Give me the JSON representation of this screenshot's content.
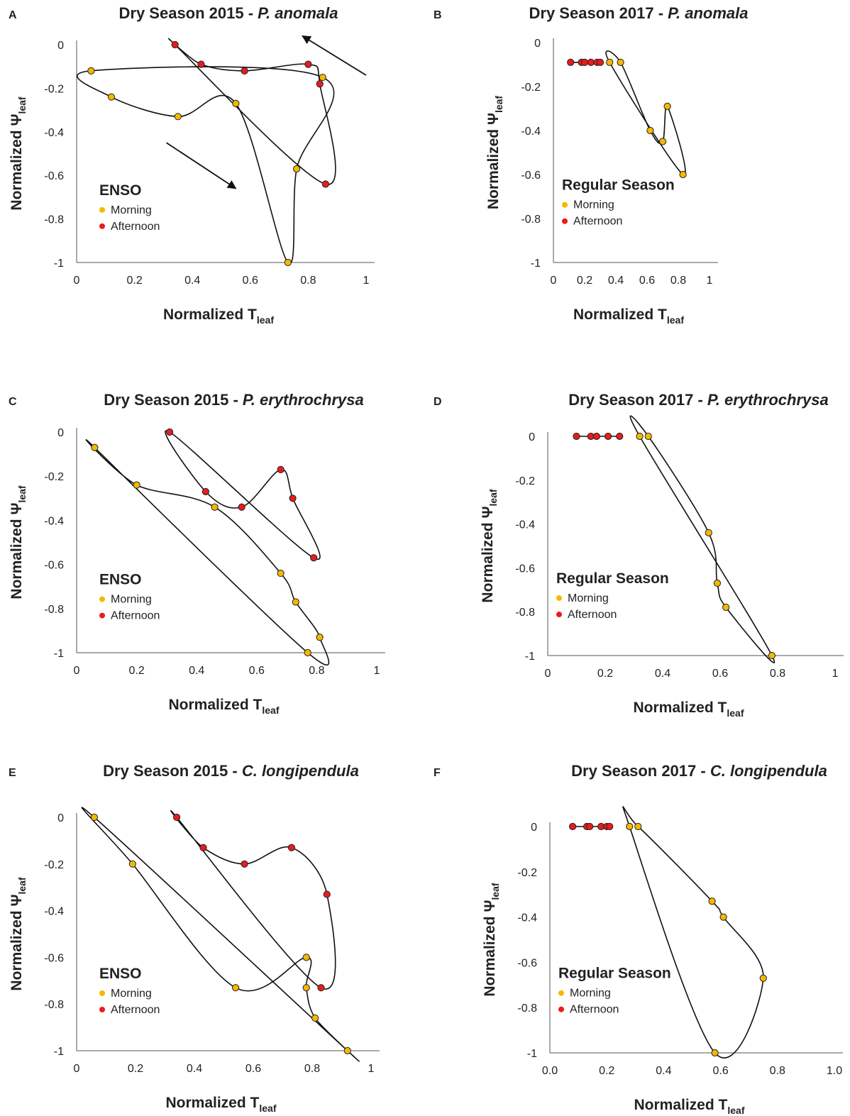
{
  "colors": {
    "morning": "#f5b800",
    "afternoon": "#e81c1c",
    "line": "#111111",
    "text": "#222222"
  },
  "x_label": {
    "main": "Normalized T",
    "sub": "leaf"
  },
  "y_label": {
    "main": "Normalized Ψ",
    "sub": "leaf"
  },
  "legend": {
    "morning": "Morning",
    "afternoon": "Afternoon"
  },
  "chart_data": [
    {
      "id": "A",
      "type": "scatter",
      "title": {
        "main": "Dry Season 2015 - ",
        "species": "P. anomala"
      },
      "annotation": "ENSO",
      "xlim": [
        0,
        1
      ],
      "ylim": [
        -1,
        0
      ],
      "x_ticks": [
        "0",
        "0.2",
        "0.4",
        "0.6",
        "0.8",
        "1"
      ],
      "y_ticks": [
        "0",
        "-0.2",
        "-0.4",
        "-0.6",
        "-0.8",
        "-1"
      ],
      "arrows": [
        {
          "from": [
            0.31,
            -0.45
          ],
          "to": [
            0.55,
            -0.66
          ]
        },
        {
          "from": [
            1.0,
            -0.14
          ],
          "to": [
            0.78,
            0.04
          ]
        }
      ],
      "series": [
        {
          "group": "morning",
          "points": [
            [
              0.05,
              -0.12
            ],
            [
              0.12,
              -0.24
            ],
            [
              0.35,
              -0.33
            ],
            [
              0.55,
              -0.27
            ],
            [
              0.73,
              -1.0
            ],
            [
              0.76,
              -0.57
            ],
            [
              0.85,
              -0.15
            ]
          ]
        },
        {
          "group": "afternoon",
          "points": [
            [
              0.34,
              0.0
            ],
            [
              0.43,
              -0.09
            ],
            [
              0.58,
              -0.12
            ],
            [
              0.8,
              -0.09
            ],
            [
              0.84,
              -0.18
            ],
            [
              0.86,
              -0.64
            ]
          ]
        }
      ]
    },
    {
      "id": "B",
      "type": "scatter",
      "title": {
        "main": "Dry Season 2017 - ",
        "species": "P. anomala"
      },
      "annotation": "Regular Season",
      "xlim": [
        0,
        1
      ],
      "ylim": [
        -1,
        0
      ],
      "x_ticks": [
        "0",
        "0.2",
        "0.4",
        "0.6",
        "0.8",
        "1"
      ],
      "y_ticks": [
        "0",
        "-0.2",
        "-0.4",
        "-0.6",
        "-0.8",
        "-1"
      ],
      "series": [
        {
          "group": "morning",
          "points": [
            [
              0.36,
              -0.09
            ],
            [
              0.43,
              -0.09
            ],
            [
              0.62,
              -0.4
            ],
            [
              0.7,
              -0.45
            ],
            [
              0.73,
              -0.29
            ],
            [
              0.83,
              -0.6
            ]
          ]
        },
        {
          "group": "afternoon",
          "points": [
            [
              0.11,
              -0.09
            ],
            [
              0.18,
              -0.09
            ],
            [
              0.2,
              -0.09
            ],
            [
              0.24,
              -0.09
            ],
            [
              0.28,
              -0.09
            ],
            [
              0.3,
              -0.09
            ]
          ]
        }
      ]
    },
    {
      "id": "C",
      "type": "scatter",
      "title": {
        "main": "Dry Season 2015 - ",
        "species": "P. erythrochrysa"
      },
      "annotation": "ENSO",
      "xlim": [
        0,
        1
      ],
      "ylim": [
        -1,
        0
      ],
      "x_ticks": [
        "0",
        "0.2",
        "0.4",
        "0.6",
        "0.8",
        "1"
      ],
      "y_ticks": [
        "0",
        "-0.2",
        "-0.4",
        "-0.6",
        "-0.8",
        "-1"
      ],
      "series": [
        {
          "group": "morning",
          "points": [
            [
              0.06,
              -0.07
            ],
            [
              0.2,
              -0.24
            ],
            [
              0.46,
              -0.34
            ],
            [
              0.68,
              -0.64
            ],
            [
              0.73,
              -0.77
            ],
            [
              0.81,
              -0.93
            ],
            [
              0.77,
              -1.0
            ]
          ]
        },
        {
          "group": "afternoon",
          "points": [
            [
              0.31,
              0.0
            ],
            [
              0.43,
              -0.27
            ],
            [
              0.55,
              -0.34
            ],
            [
              0.68,
              -0.17
            ],
            [
              0.72,
              -0.3
            ],
            [
              0.79,
              -0.57
            ]
          ]
        }
      ]
    },
    {
      "id": "D",
      "type": "scatter",
      "title": {
        "main": "Dry Season 2017 - ",
        "species": "P. erythrochrysa"
      },
      "annotation": "Regular Season",
      "xlim": [
        0,
        1
      ],
      "ylim": [
        -1,
        0
      ],
      "x_ticks": [
        "0",
        "0.2",
        "0.4",
        "0.6",
        "0.8",
        "1"
      ],
      "y_ticks": [
        "0",
        "-0.2",
        "-0.4",
        "-0.6",
        "-0.8",
        "-1"
      ],
      "series": [
        {
          "group": "morning",
          "points": [
            [
              0.32,
              0.0
            ],
            [
              0.35,
              0.0
            ],
            [
              0.56,
              -0.44
            ],
            [
              0.59,
              -0.67
            ],
            [
              0.62,
              -0.78
            ],
            [
              0.78,
              -1.0
            ]
          ]
        },
        {
          "group": "afternoon",
          "points": [
            [
              0.1,
              0.0
            ],
            [
              0.15,
              0.0
            ],
            [
              0.17,
              0.0
            ],
            [
              0.21,
              0.0
            ],
            [
              0.25,
              0.0
            ]
          ]
        }
      ]
    },
    {
      "id": "E",
      "type": "scatter",
      "title": {
        "main": "Dry Season 2015 - ",
        "species": "C. longipendula"
      },
      "annotation": "ENSO",
      "xlim": [
        0,
        1
      ],
      "ylim": [
        -1,
        0
      ],
      "x_ticks": [
        "0",
        "0.2",
        "0.4",
        "0.6",
        "0.8",
        "1"
      ],
      "y_ticks": [
        "0",
        "-0.2",
        "-0.4",
        "-0.6",
        "-0.8",
        "-1"
      ],
      "series": [
        {
          "group": "morning",
          "points": [
            [
              0.06,
              0.0
            ],
            [
              0.19,
              -0.2
            ],
            [
              0.54,
              -0.73
            ],
            [
              0.78,
              -0.6
            ],
            [
              0.78,
              -0.73
            ],
            [
              0.81,
              -0.86
            ],
            [
              0.92,
              -1.0
            ]
          ]
        },
        {
          "group": "afternoon",
          "points": [
            [
              0.34,
              0.0
            ],
            [
              0.43,
              -0.13
            ],
            [
              0.57,
              -0.2
            ],
            [
              0.73,
              -0.13
            ],
            [
              0.85,
              -0.33
            ],
            [
              0.83,
              -0.73
            ]
          ]
        }
      ]
    },
    {
      "id": "F",
      "type": "scatter",
      "title": {
        "main": "Dry Season 2017 - ",
        "species": "C. longipendula"
      },
      "annotation": "Regular Season",
      "xlim": [
        0,
        1
      ],
      "ylim": [
        -1,
        0
      ],
      "x_ticks": [
        "0.0",
        "0.2",
        "0.4",
        "0.6",
        "0.8",
        "1.0"
      ],
      "y_ticks": [
        "0",
        "-0.2",
        "-0.4",
        "-0.6",
        "-0.8",
        "-1"
      ],
      "series": [
        {
          "group": "morning",
          "points": [
            [
              0.28,
              0.0
            ],
            [
              0.31,
              0.0
            ],
            [
              0.57,
              -0.33
            ],
            [
              0.61,
              -0.4
            ],
            [
              0.75,
              -0.67
            ],
            [
              0.58,
              -1.0
            ]
          ]
        },
        {
          "group": "afternoon",
          "points": [
            [
              0.08,
              0.0
            ],
            [
              0.13,
              0.0
            ],
            [
              0.14,
              0.0
            ],
            [
              0.18,
              0.0
            ],
            [
              0.2,
              0.0
            ],
            [
              0.21,
              0.0
            ]
          ]
        }
      ]
    }
  ]
}
